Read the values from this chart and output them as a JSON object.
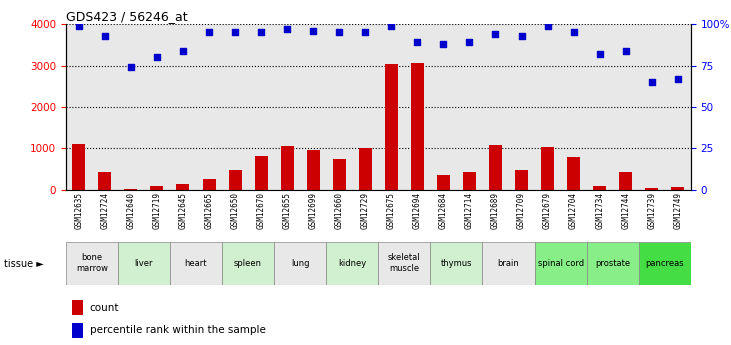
{
  "title": "GDS423 / 56246_at",
  "samples": [
    "GSM12635",
    "GSM12724",
    "GSM12640",
    "GSM12719",
    "GSM12645",
    "GSM12665",
    "GSM12650",
    "GSM12670",
    "GSM12655",
    "GSM12699",
    "GSM12660",
    "GSM12729",
    "GSM12675",
    "GSM12694",
    "GSM12684",
    "GSM12714",
    "GSM12689",
    "GSM12709",
    "GSM12679",
    "GSM12704",
    "GSM12734",
    "GSM12744",
    "GSM12739",
    "GSM12749"
  ],
  "counts": [
    1100,
    430,
    30,
    100,
    130,
    270,
    470,
    820,
    1050,
    970,
    750,
    1010,
    3040,
    3070,
    360,
    430,
    1080,
    480,
    1040,
    790,
    80,
    430,
    50,
    60
  ],
  "percentiles": [
    3960,
    3720,
    2960,
    3200,
    3360,
    3800,
    3800,
    3800,
    3880,
    3840,
    3800,
    3800,
    3960,
    3560,
    3520,
    3560,
    3760,
    3720,
    3960,
    3800,
    3280,
    3360,
    2600,
    2680
  ],
  "tissues": [
    {
      "name": "bone\nmarrow",
      "start": 0,
      "end": 2,
      "color": "#e8e8e8"
    },
    {
      "name": "liver",
      "start": 2,
      "end": 4,
      "color": "#d0f0d0"
    },
    {
      "name": "heart",
      "start": 4,
      "end": 6,
      "color": "#e8e8e8"
    },
    {
      "name": "spleen",
      "start": 6,
      "end": 8,
      "color": "#d0f0d0"
    },
    {
      "name": "lung",
      "start": 8,
      "end": 10,
      "color": "#e8e8e8"
    },
    {
      "name": "kidney",
      "start": 10,
      "end": 12,
      "color": "#d0f0d0"
    },
    {
      "name": "skeletal\nmuscle",
      "start": 12,
      "end": 14,
      "color": "#e8e8e8"
    },
    {
      "name": "thymus",
      "start": 14,
      "end": 16,
      "color": "#d0f0d0"
    },
    {
      "name": "brain",
      "start": 16,
      "end": 18,
      "color": "#e8e8e8"
    },
    {
      "name": "spinal cord",
      "start": 18,
      "end": 20,
      "color": "#88ee88"
    },
    {
      "name": "prostate",
      "start": 20,
      "end": 22,
      "color": "#88ee88"
    },
    {
      "name": "pancreas",
      "start": 22,
      "end": 24,
      "color": "#44dd44"
    }
  ],
  "ylim_left": [
    0,
    4000
  ],
  "yticks_left": [
    0,
    1000,
    2000,
    3000,
    4000
  ],
  "yticks_right_vals": [
    0,
    1000,
    2000,
    3000,
    4000
  ],
  "yticks_right_labels": [
    "0",
    "25",
    "50",
    "75",
    "100%"
  ],
  "bar_color": "#cc0000",
  "dot_color": "#0000cc",
  "plot_bg": "#e8e8e8",
  "xtick_bg": "#cccccc",
  "grid_color": "#000000"
}
